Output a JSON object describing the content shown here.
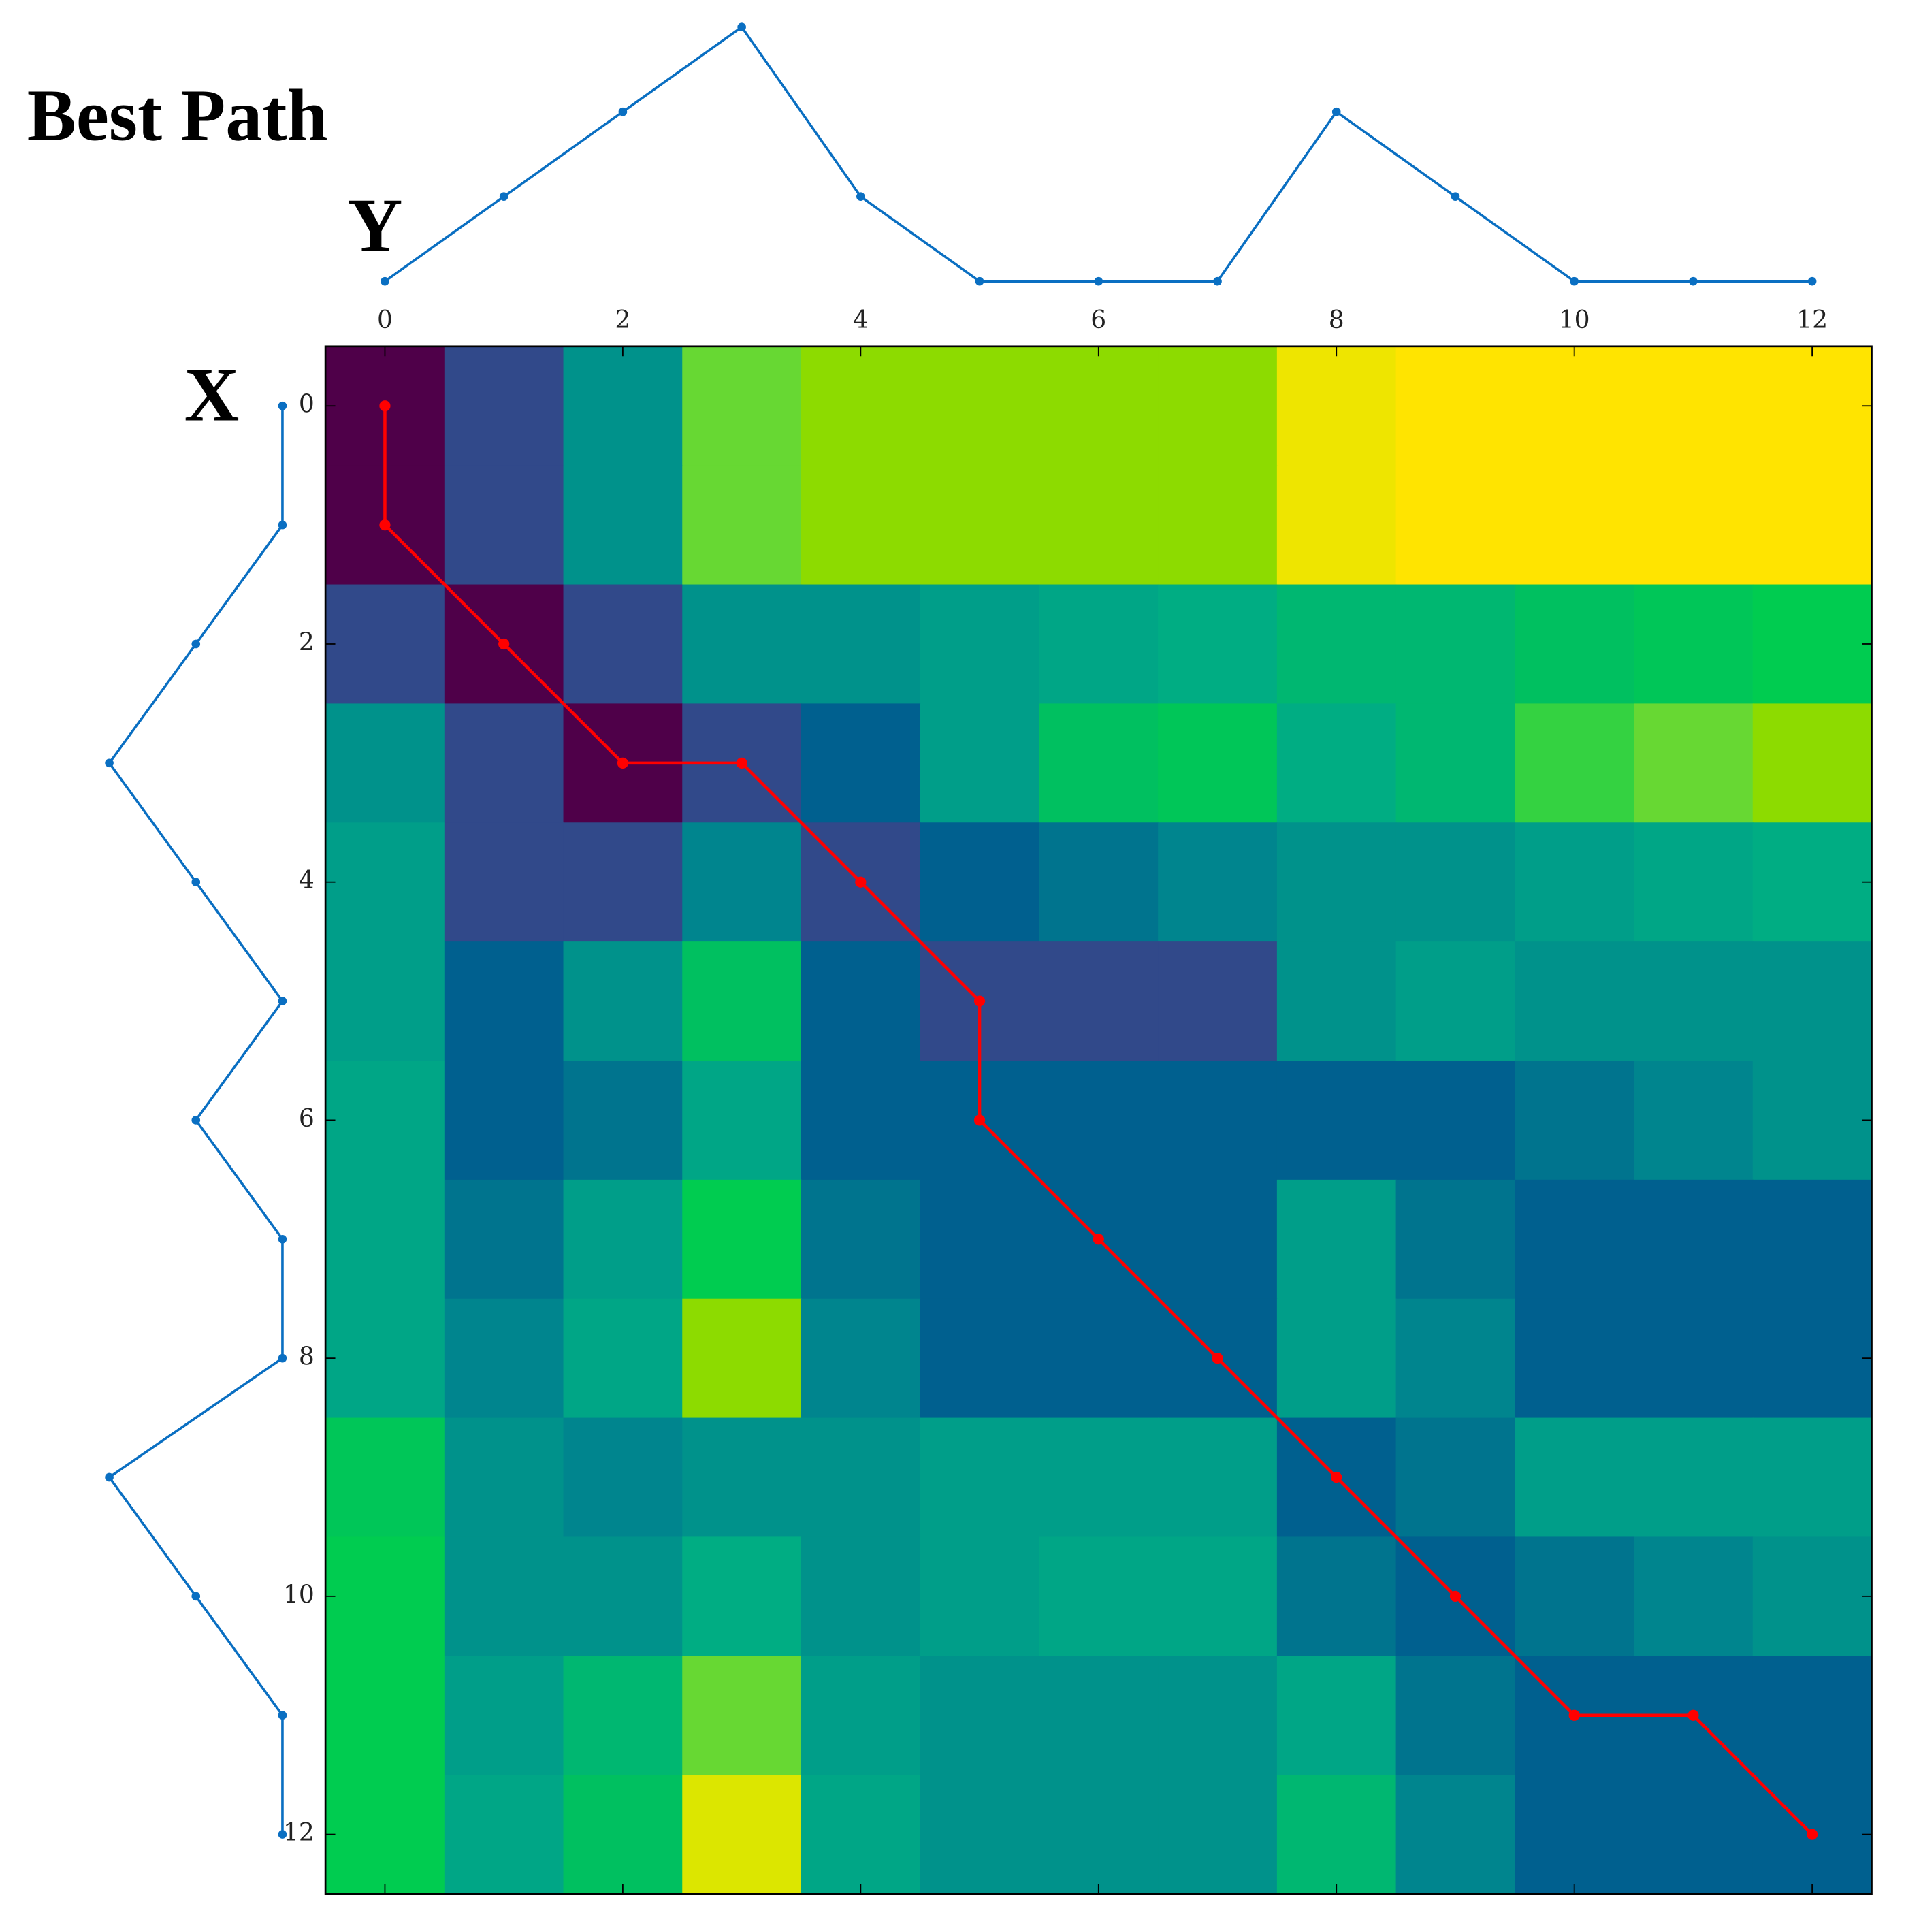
{
  "chart_data": {
    "type": "heatmap",
    "title": "Best Path",
    "top_series": {
      "name": "Y",
      "color": "#0a6fc2",
      "values": [
        0,
        1,
        2,
        3,
        1,
        0,
        0,
        0,
        2,
        1,
        0,
        0,
        0
      ]
    },
    "left_series": {
      "name": "X",
      "color": "#0a6fc2",
      "values": [
        0,
        0,
        1,
        2,
        1,
        0,
        1,
        0,
        0,
        2,
        1,
        0,
        0
      ]
    },
    "matrix": [
      [
        0,
        1,
        5,
        14,
        15,
        15,
        15,
        15,
        19,
        20,
        20,
        20,
        20
      ],
      [
        0,
        1,
        5,
        14,
        15,
        15,
        15,
        15,
        19,
        20,
        20,
        20,
        20
      ],
      [
        1,
        0,
        1,
        5,
        5,
        6,
        7,
        8,
        9,
        9,
        10,
        11,
        12
      ],
      [
        5,
        1,
        0,
        1,
        2,
        6,
        10,
        11,
        8,
        9,
        13,
        14,
        15
      ],
      [
        6,
        1,
        1,
        4,
        1,
        2,
        3,
        4,
        5,
        5,
        6,
        7,
        8
      ],
      [
        6,
        2,
        5,
        10,
        2,
        1,
        1,
        1,
        5,
        6,
        5,
        5,
        5
      ],
      [
        7,
        2,
        3,
        7,
        2,
        2,
        2,
        2,
        2,
        2,
        3,
        4,
        5
      ],
      [
        7,
        3,
        6,
        12,
        3,
        2,
        2,
        2,
        6,
        3,
        2,
        2,
        2
      ],
      [
        7,
        4,
        7,
        15,
        4,
        2,
        2,
        2,
        6,
        4,
        2,
        2,
        2
      ],
      [
        11,
        5,
        4,
        5,
        5,
        6,
        6,
        6,
        2,
        3,
        6,
        6,
        6
      ],
      [
        12,
        5,
        5,
        8,
        5,
        6,
        7,
        7,
        3,
        2,
        3,
        4,
        5
      ],
      [
        12,
        6,
        9,
        14,
        6,
        5,
        5,
        5,
        7,
        3,
        2,
        2,
        2
      ],
      [
        12,
        7,
        10,
        18,
        7,
        5,
        5,
        5,
        9,
        4,
        2,
        2,
        2
      ]
    ],
    "path": {
      "color": "#ff0000",
      "cols": [
        0,
        0,
        1,
        2,
        3,
        4,
        5,
        5,
        6,
        7,
        8,
        9,
        10,
        11,
        12
      ],
      "rows": [
        0,
        1,
        2,
        3,
        3,
        4,
        5,
        6,
        7,
        8,
        9,
        10,
        11,
        11,
        12
      ]
    },
    "xlim": [
      -0.5,
      12.5
    ],
    "ylim": [
      -0.5,
      12.5
    ],
    "xticks": [
      0,
      2,
      4,
      6,
      8,
      10,
      12
    ],
    "yticks": [
      0,
      2,
      4,
      6,
      8,
      10,
      12
    ],
    "vmin": 0,
    "vmax": 20,
    "norm": "power",
    "gamma": 0.5,
    "colormap": [
      [
        0,
        "#4f0049"
      ],
      [
        0.224,
        "#31498a"
      ],
      [
        0.316,
        "#00608f"
      ],
      [
        0.447,
        "#00858e"
      ],
      [
        0.548,
        "#009e89"
      ],
      [
        0.632,
        "#00ad83"
      ],
      [
        0.707,
        "#00c060"
      ],
      [
        0.775,
        "#00cc50"
      ],
      [
        0.837,
        "#68d833"
      ],
      [
        0.866,
        "#8ddb00"
      ],
      [
        0.949,
        "#dce600"
      ],
      [
        1,
        "#ffe400"
      ]
    ]
  }
}
